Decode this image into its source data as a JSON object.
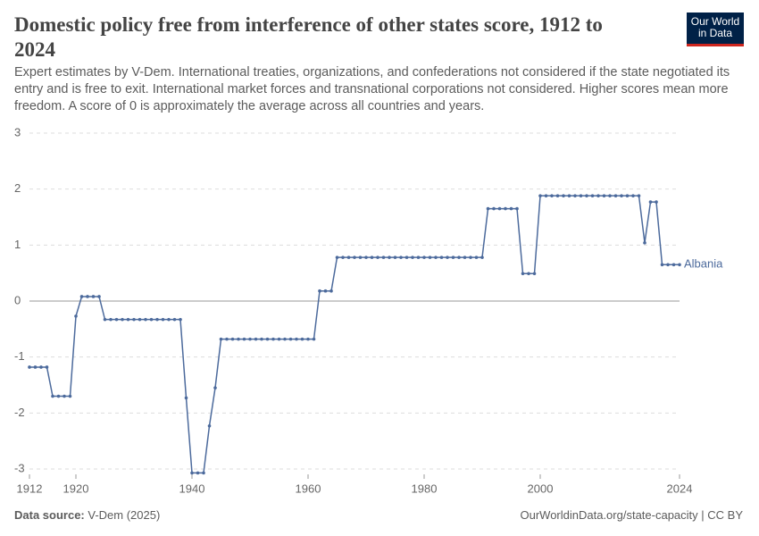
{
  "chart_data": {
    "type": "line",
    "title": "Domestic policy free from interference of other states score, 1912 to 2024",
    "subtitle": "Expert estimates by V-Dem. International treaties, organizations, and confederations not considered if the state negotiated its entry and is free to exit. International market forces and transnational corporations not considered. Higher scores mean more freedom. A score of 0 is approximately the average across all countries and years.",
    "logo": "Our World in Data",
    "source_label": "Data source:",
    "source": "V-Dem (2025)",
    "url": "OurWorldinData.org/state-capacity | CC BY",
    "x": [
      1912,
      1913,
      1914,
      1915,
      1916,
      1917,
      1918,
      1919,
      1920,
      1921,
      1922,
      1923,
      1924,
      1925,
      1926,
      1927,
      1928,
      1929,
      1930,
      1931,
      1932,
      1933,
      1934,
      1935,
      1936,
      1937,
      1938,
      1939,
      1940,
      1941,
      1942,
      1943,
      1944,
      1945,
      1946,
      1947,
      1948,
      1949,
      1950,
      1951,
      1952,
      1953,
      1954,
      1955,
      1956,
      1957,
      1958,
      1959,
      1960,
      1961,
      1962,
      1963,
      1964,
      1965,
      1966,
      1967,
      1968,
      1969,
      1970,
      1971,
      1972,
      1973,
      1974,
      1975,
      1976,
      1977,
      1978,
      1979,
      1980,
      1981,
      1982,
      1983,
      1984,
      1985,
      1986,
      1987,
      1988,
      1989,
      1990,
      1991,
      1992,
      1993,
      1994,
      1995,
      1996,
      1997,
      1998,
      1999,
      2000,
      2001,
      2002,
      2003,
      2004,
      2005,
      2006,
      2007,
      2008,
      2009,
      2010,
      2011,
      2012,
      2013,
      2014,
      2015,
      2016,
      2017,
      2018,
      2019,
      2020,
      2021,
      2022,
      2023,
      2024
    ],
    "series": [
      {
        "name": "Albania",
        "color": "#4c6a9c",
        "values": [
          -1.18,
          -1.18,
          -1.18,
          -1.18,
          -1.7,
          -1.7,
          -1.7,
          -1.7,
          -0.27,
          0.08,
          0.08,
          0.08,
          0.08,
          -0.33,
          -0.33,
          -0.33,
          -0.33,
          -0.33,
          -0.33,
          -0.33,
          -0.33,
          -0.33,
          -0.33,
          -0.33,
          -0.33,
          -0.33,
          -0.33,
          -1.73,
          -3.07,
          -3.07,
          -3.07,
          -2.23,
          -1.55,
          -0.68,
          -0.68,
          -0.68,
          -0.68,
          -0.68,
          -0.68,
          -0.68,
          -0.68,
          -0.68,
          -0.68,
          -0.68,
          -0.68,
          -0.68,
          -0.68,
          -0.68,
          -0.68,
          -0.68,
          0.18,
          0.18,
          0.18,
          0.78,
          0.78,
          0.78,
          0.78,
          0.78,
          0.78,
          0.78,
          0.78,
          0.78,
          0.78,
          0.78,
          0.78,
          0.78,
          0.78,
          0.78,
          0.78,
          0.78,
          0.78,
          0.78,
          0.78,
          0.78,
          0.78,
          0.78,
          0.78,
          0.78,
          0.78,
          1.65,
          1.65,
          1.65,
          1.65,
          1.65,
          1.65,
          0.49,
          0.49,
          0.49,
          1.88,
          1.88,
          1.88,
          1.88,
          1.88,
          1.88,
          1.88,
          1.88,
          1.88,
          1.88,
          1.88,
          1.88,
          1.88,
          1.88,
          1.88,
          1.88,
          1.88,
          1.88,
          1.04,
          1.77,
          1.77,
          0.65,
          0.65,
          0.65,
          0.65
        ]
      }
    ],
    "xlim": [
      1912,
      2024
    ],
    "xticks": [
      1912,
      1920,
      1940,
      1960,
      1980,
      2000,
      2024
    ],
    "ylim": [
      -3,
      3
    ],
    "yticks": [
      -3,
      -2,
      -1,
      0,
      1,
      2,
      3
    ],
    "grid": true
  }
}
